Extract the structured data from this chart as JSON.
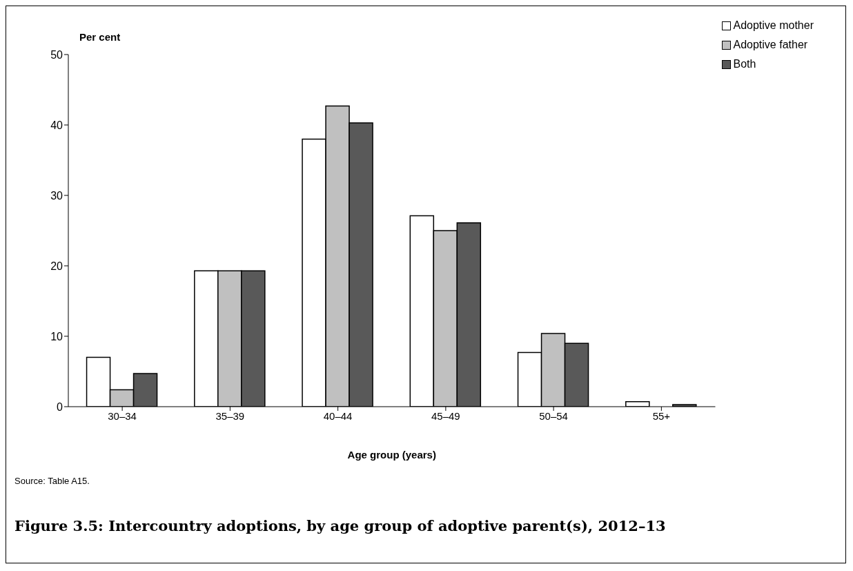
{
  "chart_data": {
    "type": "bar",
    "title": "Figure 3.5: Intercountry adoptions, by age group of adoptive parent(s), 2012–13",
    "xlabel": "Age group (years)",
    "ylabel": "Per cent",
    "annotations": [
      "Source: Table A15."
    ],
    "categories": [
      "30–34",
      "35–39",
      "40–44",
      "45–49",
      "50–54",
      "55+"
    ],
    "series": [
      {
        "name": "Adoptive mother",
        "color": "#ffffff",
        "values": [
          7.0,
          19.3,
          38.0,
          27.1,
          7.7,
          0.7
        ]
      },
      {
        "name": "Adoptive father",
        "color": "#c0c0c0",
        "values": [
          2.4,
          19.3,
          42.7,
          25.0,
          10.4,
          0
        ]
      },
      {
        "name": "Both",
        "color": "#595959",
        "values": [
          4.7,
          19.3,
          40.3,
          26.1,
          9.0,
          0.3
        ]
      }
    ],
    "ylim": [
      0,
      50
    ],
    "yticks": [
      0,
      10,
      20,
      30,
      40,
      50
    ],
    "grid": false,
    "legend": "top right"
  }
}
